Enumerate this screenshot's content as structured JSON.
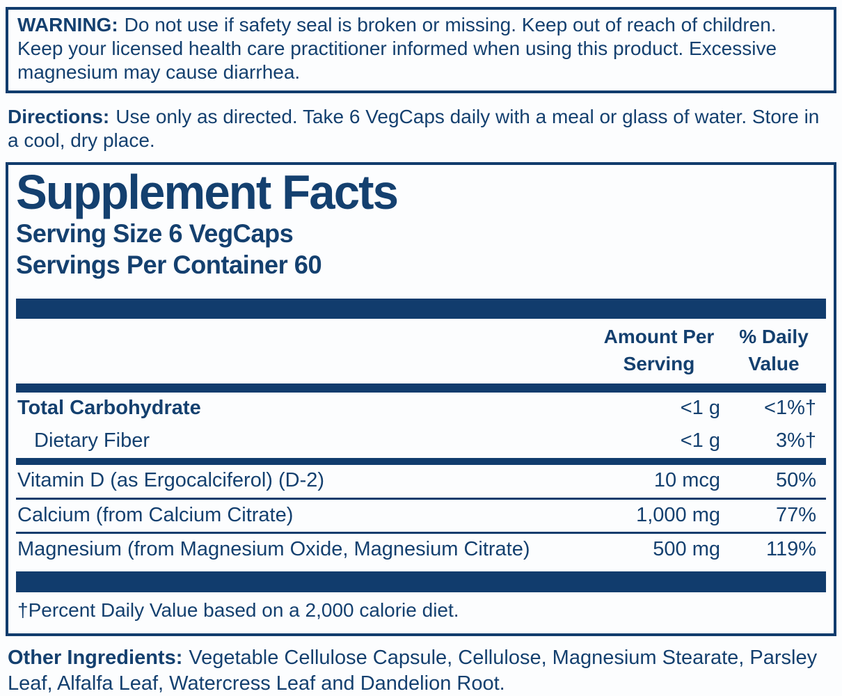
{
  "colors": {
    "ink_navy": "#113c6d",
    "background": "#fcfdfe"
  },
  "warning": {
    "label": "WARNING:",
    "text": "Do not use if safety seal is broken or missing. Keep out of reach of children. Keep your licensed health care practitioner informed when using this product. Excessive magnesium may cause diarrhea."
  },
  "directions": {
    "label": "Directions:",
    "text": "Use only as directed. Take 6 VegCaps daily with a meal or glass of water. Store in a cool, dry place."
  },
  "supplement_facts": {
    "title": "Supplement Facts",
    "serving_size": "Serving Size 6 VegCaps",
    "servings_per_container": "Servings Per Container 60",
    "columns": {
      "amount_header": "Amount Per Serving",
      "dv_header": "% Daily Value"
    },
    "rows": [
      {
        "name": "Total Carbohydrate",
        "amount": "<1 g",
        "dv": "<1%†"
      },
      {
        "name": "Dietary Fiber",
        "amount": "<1 g",
        "dv": "3%†"
      },
      {
        "name": "Vitamin D (as Ergocalciferol) (D-2)",
        "amount": "10 mcg",
        "dv": "50%"
      },
      {
        "name": "Calcium (from Calcium Citrate)",
        "amount": "1,000 mg",
        "dv": "77%"
      },
      {
        "name": "Magnesium (from Magnesium Oxide, Magnesium Citrate)",
        "amount": "500 mg",
        "dv": "119%"
      }
    ],
    "footnote": "†Percent Daily Value based on a 2,000 calorie diet."
  },
  "other_ingredients": {
    "label": "Other Ingredients:",
    "text": "Vegetable Cellulose Capsule, Cellulose, Magnesium Stearate, Parsley Leaf, Alfalfa Leaf, Watercress Leaf and Dandelion Root."
  }
}
